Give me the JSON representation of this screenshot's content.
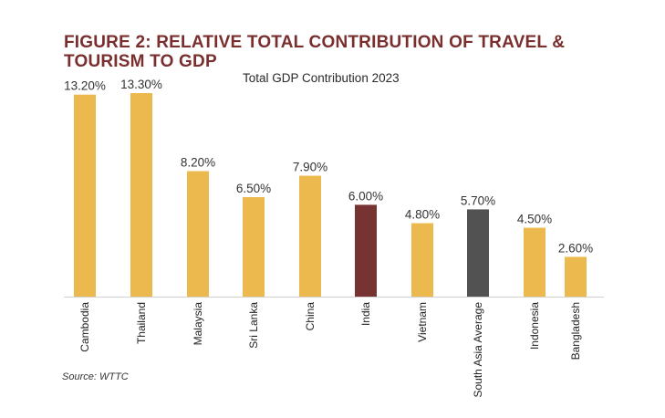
{
  "header": {
    "title_line1": "FIGURE 2: RELATIVE TOTAL CONTRIBUTION OF TRAVEL &",
    "title_line2": "TOURISM TO GDP",
    "subtitle": "Total GDP Contribution 2023"
  },
  "footer": {
    "source": "Source: WTTC"
  },
  "chart_data": {
    "type": "bar",
    "title": "Total GDP Contribution 2023",
    "xlabel": "",
    "ylabel": "",
    "ylim": [
      0,
      13.3
    ],
    "grid": false,
    "legend": "none",
    "categories": [
      "Cambodia",
      "Thailand",
      "Malaysia",
      "Sri Lanka",
      "China",
      "India",
      "Vietnam",
      "South Asia Average",
      "Indonesia",
      "Bangladesh"
    ],
    "values": [
      13.2,
      13.3,
      8.2,
      6.5,
      7.9,
      6.0,
      4.8,
      5.7,
      4.5,
      2.6
    ],
    "value_labels": [
      "13.20%",
      "13.30%",
      "8.20%",
      "6.50%",
      "7.90%",
      "6.00%",
      "4.80%",
      "5.70%",
      "4.50%",
      "2.60%"
    ],
    "colors": [
      "#ecb94f",
      "#ecb94f",
      "#ecb94f",
      "#ecb94f",
      "#ecb94f",
      "#773331",
      "#ecb94f",
      "#525252",
      "#ecb94f",
      "#ecb94f"
    ],
    "axis_color": "#d0d0d0"
  }
}
